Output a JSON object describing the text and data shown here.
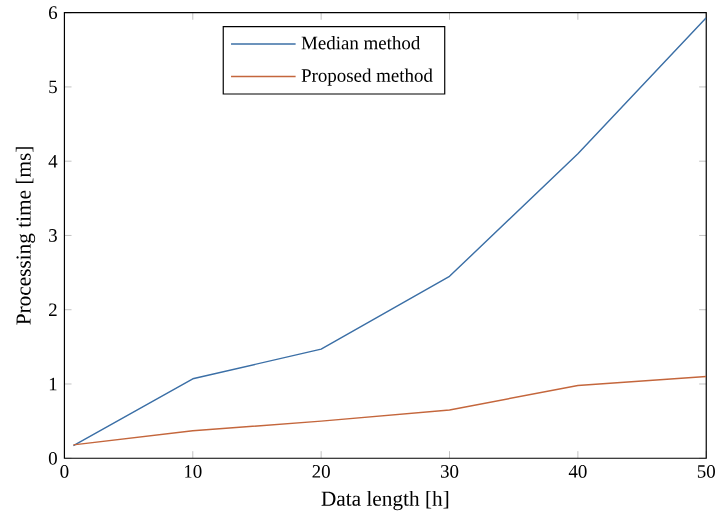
{
  "chart_data": {
    "type": "line",
    "xlabel": "Data length [h]",
    "ylabel": "Processing time [ms]",
    "x": [
      0.7,
      10,
      20,
      30,
      40,
      50
    ],
    "series": [
      {
        "name": "Median method",
        "color": "#3b6fa6",
        "values": [
          0.17,
          1.07,
          1.47,
          2.45,
          4.1,
          5.93
        ]
      },
      {
        "name": "Proposed method",
        "color": "#c4663c",
        "values": [
          0.18,
          0.37,
          0.5,
          0.65,
          0.98,
          1.1
        ]
      }
    ],
    "xlim": [
      0,
      50
    ],
    "ylim": [
      0,
      6
    ],
    "xticks": [
      0,
      10,
      20,
      30,
      40,
      50
    ],
    "yticks": [
      0,
      1,
      2,
      3,
      4,
      5,
      6
    ],
    "grid": false,
    "legend": "top",
    "marker": "none",
    "line_style": "solid"
  }
}
